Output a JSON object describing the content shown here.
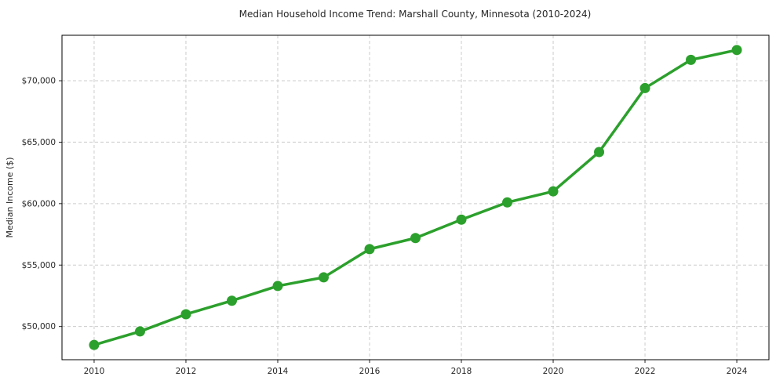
{
  "chart_data": {
    "type": "line",
    "title": "Median Household Income Trend: Marshall County, Minnesota (2010-2024)",
    "xlabel": "",
    "ylabel": "Median Income ($)",
    "x": [
      2010,
      2011,
      2012,
      2013,
      2014,
      2015,
      2016,
      2017,
      2018,
      2019,
      2020,
      2021,
      2022,
      2023,
      2024
    ],
    "series": [
      {
        "name": "Median Household Income",
        "values": [
          48500,
          49600,
          51000,
          52100,
          53300,
          54000,
          56300,
          57200,
          58700,
          60100,
          61000,
          64200,
          69400,
          71700,
          72500
        ],
        "color": "#2ca02c",
        "marker": "circle",
        "marker_radius": 6.5,
        "line_width": 3.5
      }
    ],
    "xticks": [
      2010,
      2012,
      2014,
      2016,
      2018,
      2020,
      2022,
      2024
    ],
    "xtick_labels": [
      "2010",
      "2012",
      "2014",
      "2016",
      "2018",
      "2020",
      "2022",
      "2024"
    ],
    "yticks": [
      50000,
      55000,
      60000,
      65000,
      70000
    ],
    "ytick_labels": [
      "$50,000",
      "$55,000",
      "$60,000",
      "$65,000",
      "$70,000"
    ],
    "xlim": [
      2009.3,
      2024.7
    ],
    "ylim": [
      47300,
      73700
    ],
    "grid": true,
    "grid_style": "dashed",
    "grid_color": "#cccccc",
    "legend": "none",
    "background_color": "#ffffff"
  }
}
